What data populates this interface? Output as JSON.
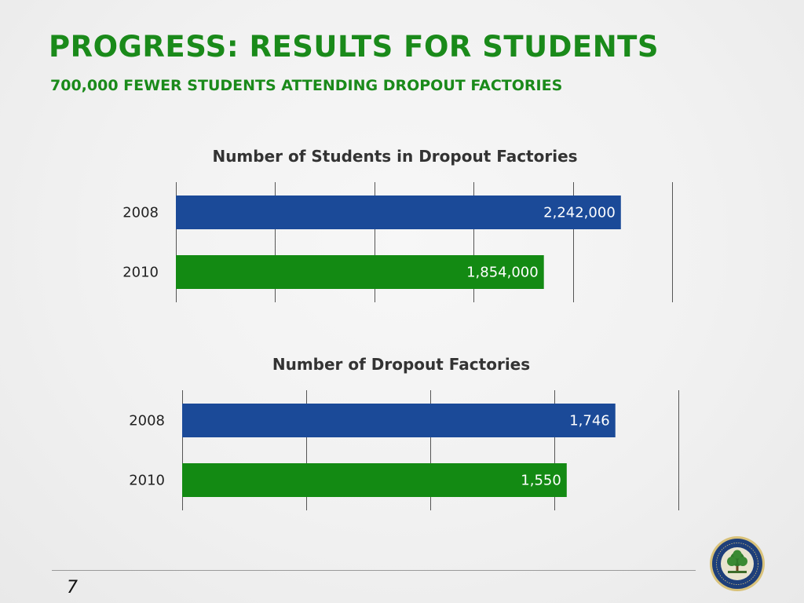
{
  "slide": {
    "title": "PROGRESS: RESULTS FOR STUDENTS",
    "subtitle": "700,000 FEWER STUDENTS ATTENDING DROPOUT FACTORIES",
    "page_number": "7",
    "seal_text": "DEPARTMENT OF EDUCATION · UNITED STATES OF AMERICA"
  },
  "colors": {
    "accent": "#1a8a1a",
    "series_2008": "#1b4a98",
    "series_2010": "#138a13"
  },
  "chart_data": [
    {
      "type": "bar",
      "orientation": "horizontal",
      "title": "Number of Students in Dropout Factories",
      "categories": [
        "2008",
        "2010"
      ],
      "values": [
        2242000,
        1854000
      ],
      "labels": [
        "2,242,000",
        "1,854,000"
      ],
      "xlim": [
        0,
        2500000
      ],
      "grid": true
    },
    {
      "type": "bar",
      "orientation": "horizontal",
      "title": "Number of Dropout Factories",
      "categories": [
        "2008",
        "2010"
      ],
      "values": [
        1746,
        1550
      ],
      "labels": [
        "1,746",
        "1,550"
      ],
      "xlim": [
        0,
        2000
      ],
      "grid": true
    }
  ]
}
